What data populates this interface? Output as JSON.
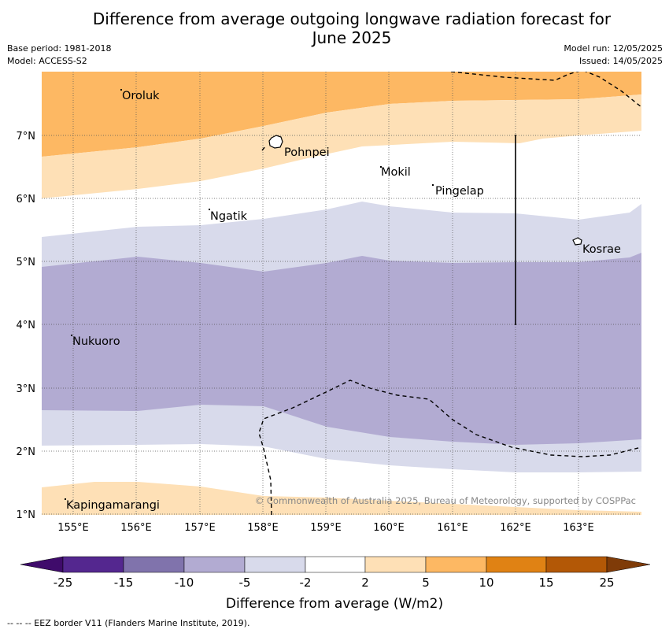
{
  "title_line1": "Difference from average outgoing longwave radiation forecast for",
  "title_line2": "June 2025",
  "base_period": "Base period: 1981-2018",
  "model": "Model: ACCESS-S2",
  "model_run": "Model run: 12/05/2025",
  "issued": "Issued: 14/05/2025",
  "copyright": "© Commonwealth of Australia 2025, Bureau of Meteorology, supported by COSPPac",
  "footnote": "--  --  -- EEZ border V11 (Flanders Marine Institute, 2019).",
  "colorbar": {
    "label": "Difference from average (W/m2)",
    "ticks": [
      "-25",
      "-15",
      "-10",
      "-5",
      "-2",
      "2",
      "5",
      "10",
      "15",
      "25"
    ],
    "colors": [
      "#3f0b6b",
      "#54278f",
      "#8073ac",
      "#b2abd2",
      "#d8daeb",
      "#ffffff",
      "#fee0b6",
      "#fdb863",
      "#e08214",
      "#b35806",
      "#7f3b08"
    ]
  },
  "map": {
    "lon_labels": [
      "155°E",
      "156°E",
      "157°E",
      "158°E",
      "159°E",
      "160°E",
      "161°E",
      "162°E",
      "163°E"
    ],
    "lat_labels": [
      "7°N",
      "6°N",
      "5°N",
      "4°N",
      "3°N",
      "2°N",
      "1°N"
    ],
    "places": [
      "Oroluk",
      "Pohnpei",
      "Mokil",
      "Pingelap",
      "Ngatik",
      "Kosrae",
      "Nukuoro",
      "Kapingamarangi"
    ]
  }
}
